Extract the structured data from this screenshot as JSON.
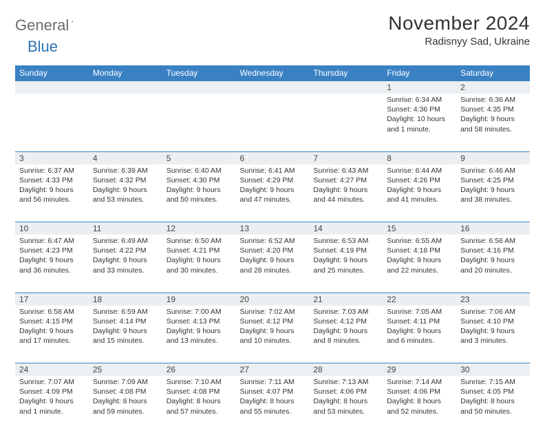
{
  "logo": {
    "word1": "General",
    "word2": "Blue"
  },
  "title": "November 2024",
  "location": "Radisnyy Sad, Ukraine",
  "colors": {
    "header_bg": "#3a81c4",
    "header_text": "#ffffff",
    "daynum_bg": "#eceff1",
    "border": "#3a81c4",
    "logo_gray": "#6b6b6b",
    "logo_blue": "#2f72b5"
  },
  "typography": {
    "title_fontsize": 28,
    "location_fontsize": 15,
    "header_fontsize": 12,
    "cell_fontsize": 10.5
  },
  "days_of_week": [
    "Sunday",
    "Monday",
    "Tuesday",
    "Wednesday",
    "Thursday",
    "Friday",
    "Saturday"
  ],
  "weeks": [
    [
      null,
      null,
      null,
      null,
      null,
      {
        "n": "1",
        "sunrise": "6:34 AM",
        "sunset": "4:36 PM",
        "daylight": "10 hours and 1 minute."
      },
      {
        "n": "2",
        "sunrise": "6:36 AM",
        "sunset": "4:35 PM",
        "daylight": "9 hours and 58 minutes."
      }
    ],
    [
      {
        "n": "3",
        "sunrise": "6:37 AM",
        "sunset": "4:33 PM",
        "daylight": "9 hours and 56 minutes."
      },
      {
        "n": "4",
        "sunrise": "6:39 AM",
        "sunset": "4:32 PM",
        "daylight": "9 hours and 53 minutes."
      },
      {
        "n": "5",
        "sunrise": "6:40 AM",
        "sunset": "4:30 PM",
        "daylight": "9 hours and 50 minutes."
      },
      {
        "n": "6",
        "sunrise": "6:41 AM",
        "sunset": "4:29 PM",
        "daylight": "9 hours and 47 minutes."
      },
      {
        "n": "7",
        "sunrise": "6:43 AM",
        "sunset": "4:27 PM",
        "daylight": "9 hours and 44 minutes."
      },
      {
        "n": "8",
        "sunrise": "6:44 AM",
        "sunset": "4:26 PM",
        "daylight": "9 hours and 41 minutes."
      },
      {
        "n": "9",
        "sunrise": "6:46 AM",
        "sunset": "4:25 PM",
        "daylight": "9 hours and 38 minutes."
      }
    ],
    [
      {
        "n": "10",
        "sunrise": "6:47 AM",
        "sunset": "4:23 PM",
        "daylight": "9 hours and 36 minutes."
      },
      {
        "n": "11",
        "sunrise": "6:49 AM",
        "sunset": "4:22 PM",
        "daylight": "9 hours and 33 minutes."
      },
      {
        "n": "12",
        "sunrise": "6:50 AM",
        "sunset": "4:21 PM",
        "daylight": "9 hours and 30 minutes."
      },
      {
        "n": "13",
        "sunrise": "6:52 AM",
        "sunset": "4:20 PM",
        "daylight": "9 hours and 28 minutes."
      },
      {
        "n": "14",
        "sunrise": "6:53 AM",
        "sunset": "4:19 PM",
        "daylight": "9 hours and 25 minutes."
      },
      {
        "n": "15",
        "sunrise": "6:55 AM",
        "sunset": "4:18 PM",
        "daylight": "9 hours and 22 minutes."
      },
      {
        "n": "16",
        "sunrise": "6:56 AM",
        "sunset": "4:16 PM",
        "daylight": "9 hours and 20 minutes."
      }
    ],
    [
      {
        "n": "17",
        "sunrise": "6:58 AM",
        "sunset": "4:15 PM",
        "daylight": "9 hours and 17 minutes."
      },
      {
        "n": "18",
        "sunrise": "6:59 AM",
        "sunset": "4:14 PM",
        "daylight": "9 hours and 15 minutes."
      },
      {
        "n": "19",
        "sunrise": "7:00 AM",
        "sunset": "4:13 PM",
        "daylight": "9 hours and 13 minutes."
      },
      {
        "n": "20",
        "sunrise": "7:02 AM",
        "sunset": "4:12 PM",
        "daylight": "9 hours and 10 minutes."
      },
      {
        "n": "21",
        "sunrise": "7:03 AM",
        "sunset": "4:12 PM",
        "daylight": "9 hours and 8 minutes."
      },
      {
        "n": "22",
        "sunrise": "7:05 AM",
        "sunset": "4:11 PM",
        "daylight": "9 hours and 6 minutes."
      },
      {
        "n": "23",
        "sunrise": "7:06 AM",
        "sunset": "4:10 PM",
        "daylight": "9 hours and 3 minutes."
      }
    ],
    [
      {
        "n": "24",
        "sunrise": "7:07 AM",
        "sunset": "4:09 PM",
        "daylight": "9 hours and 1 minute."
      },
      {
        "n": "25",
        "sunrise": "7:09 AM",
        "sunset": "4:08 PM",
        "daylight": "8 hours and 59 minutes."
      },
      {
        "n": "26",
        "sunrise": "7:10 AM",
        "sunset": "4:08 PM",
        "daylight": "8 hours and 57 minutes."
      },
      {
        "n": "27",
        "sunrise": "7:11 AM",
        "sunset": "4:07 PM",
        "daylight": "8 hours and 55 minutes."
      },
      {
        "n": "28",
        "sunrise": "7:13 AM",
        "sunset": "4:06 PM",
        "daylight": "8 hours and 53 minutes."
      },
      {
        "n": "29",
        "sunrise": "7:14 AM",
        "sunset": "4:06 PM",
        "daylight": "8 hours and 52 minutes."
      },
      {
        "n": "30",
        "sunrise": "7:15 AM",
        "sunset": "4:05 PM",
        "daylight": "8 hours and 50 minutes."
      }
    ]
  ],
  "labels": {
    "sunrise": "Sunrise: ",
    "sunset": "Sunset: ",
    "daylight": "Daylight: "
  }
}
